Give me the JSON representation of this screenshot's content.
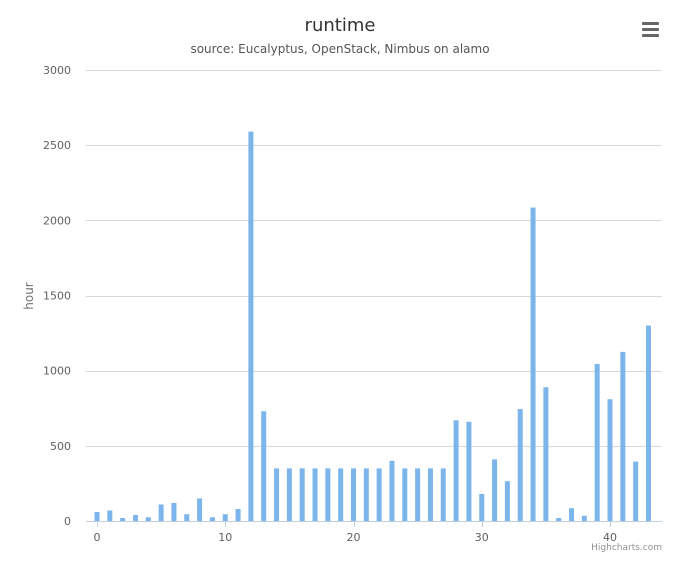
{
  "chart_data": {
    "type": "bar",
    "title": "runtime",
    "subtitle": "source: Eucalyptus, OpenStack, Nimbus on alamo",
    "xlabel": "",
    "ylabel": "hour",
    "ylim": [
      0,
      3000
    ],
    "xlim": [
      -1,
      44
    ],
    "x_ticks": [
      0,
      10,
      20,
      30,
      40
    ],
    "y_ticks": [
      0,
      500,
      1000,
      1500,
      2000,
      2500,
      3000
    ],
    "grid": true,
    "legend": "none",
    "color": "#7cb5ec",
    "x": [
      0,
      1,
      2,
      3,
      4,
      5,
      6,
      7,
      8,
      9,
      10,
      11,
      12,
      13,
      14,
      15,
      16,
      17,
      18,
      19,
      20,
      21,
      22,
      23,
      24,
      25,
      26,
      27,
      28,
      29,
      30,
      31,
      32,
      33,
      34,
      35,
      36,
      37,
      38,
      39,
      40,
      41,
      42,
      43
    ],
    "values": [
      60,
      70,
      20,
      40,
      25,
      110,
      120,
      45,
      150,
      25,
      45,
      80,
      2590,
      730,
      350,
      350,
      350,
      350,
      350,
      350,
      350,
      350,
      350,
      400,
      350,
      350,
      350,
      350,
      670,
      660,
      180,
      410,
      265,
      745,
      2085,
      890,
      20,
      85,
      35,
      1045,
      810,
      1125,
      395,
      1300
    ]
  },
  "ui": {
    "menu_icon": "hamburger-menu-icon",
    "credits": "Highcharts.com"
  }
}
